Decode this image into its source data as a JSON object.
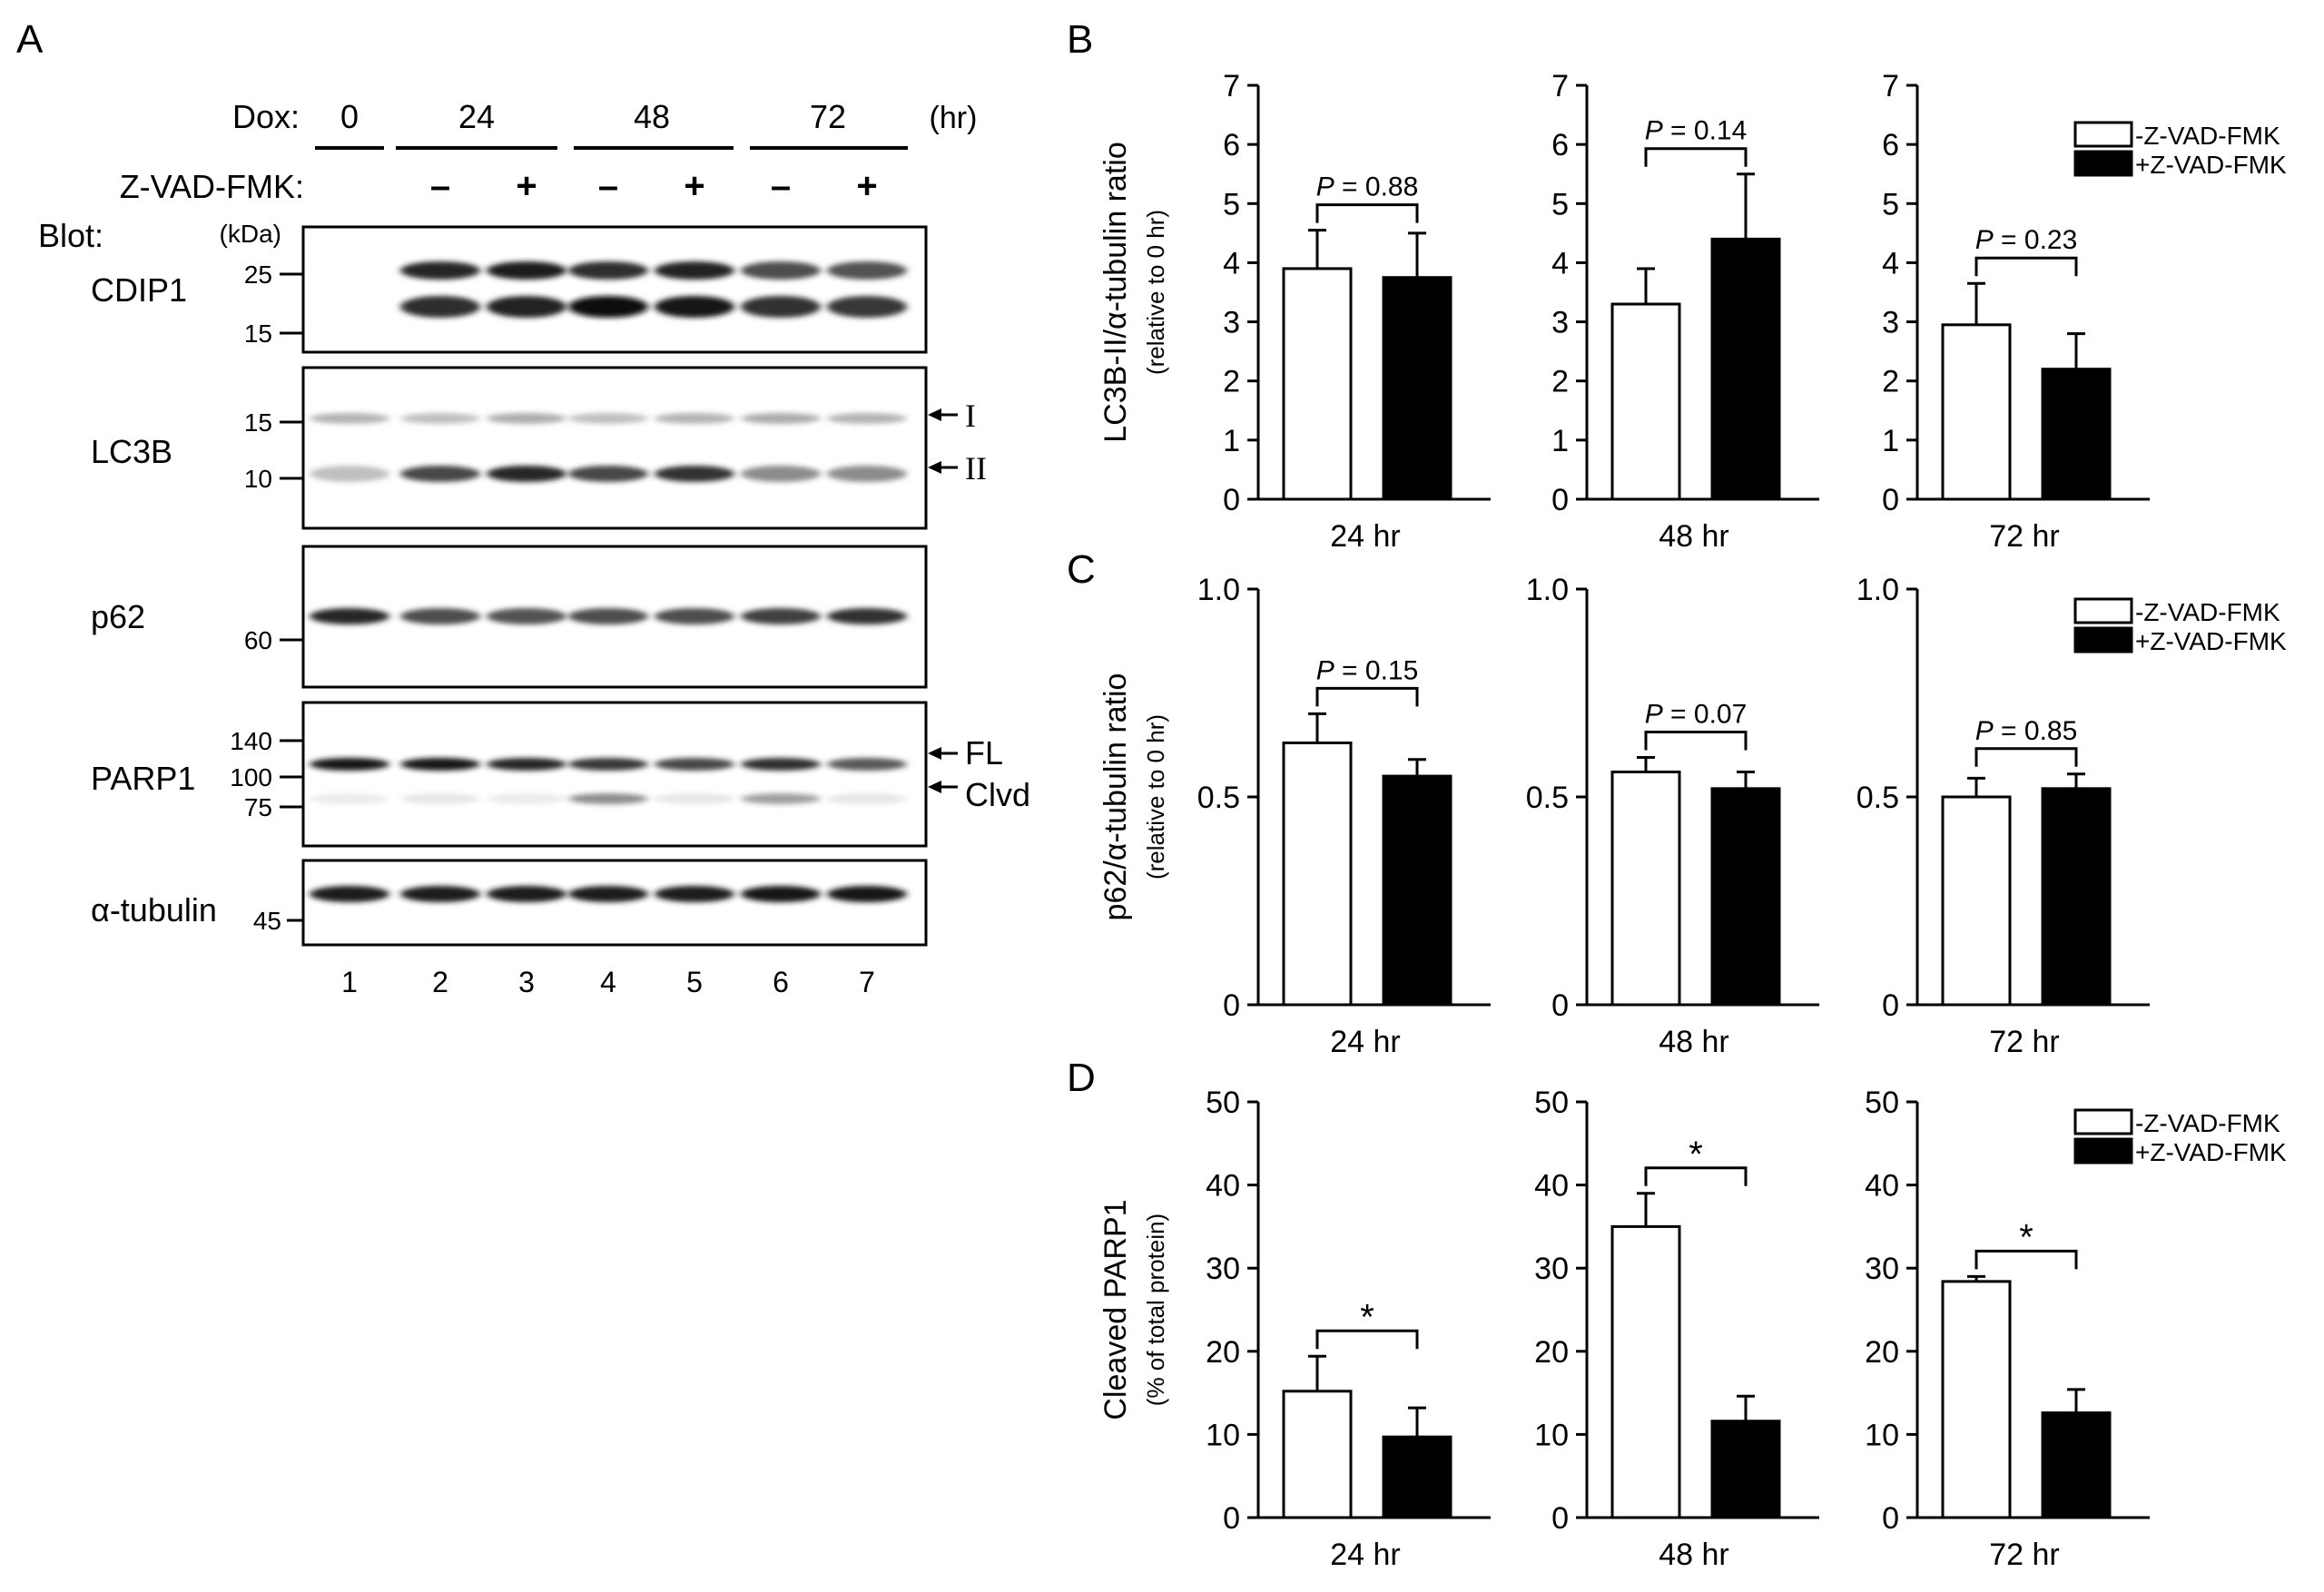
{
  "panel_labels": {
    "a": "A",
    "b": "B",
    "c": "C",
    "d": "D"
  },
  "blot": {
    "dox_label": "Dox:",
    "dox_groups": [
      "0",
      "24",
      "48",
      "72"
    ],
    "dox_unit": "(hr)",
    "zvad_label": "Z-VAD-FMK:",
    "zvad_signs": [
      "–",
      "+",
      "–",
      "+",
      "–",
      "+"
    ],
    "blot_label": "Blot:",
    "kda_label": "(kDa)",
    "lanes": [
      "1",
      "2",
      "3",
      "4",
      "5",
      "6",
      "7"
    ],
    "panels": [
      {
        "name": "CDIP1",
        "markers": [
          "25",
          "15"
        ],
        "arrows": []
      },
      {
        "name": "LC3B",
        "markers": [
          "15",
          "10"
        ],
        "arrows": [
          "I",
          "II"
        ]
      },
      {
        "name": "p62",
        "markers": [
          "60"
        ],
        "arrows": []
      },
      {
        "name": "PARP1",
        "markers": [
          "140",
          "100",
          "75"
        ],
        "arrows": [
          "FL",
          "Clvd"
        ]
      },
      {
        "name": "α-tubulin",
        "markers": [
          "45"
        ],
        "arrows": []
      }
    ],
    "band_intensity": {
      "cdip1_upper": [
        0,
        0.85,
        0.88,
        0.82,
        0.86,
        0.7,
        0.68
      ],
      "cdip1_lower": [
        0,
        0.82,
        0.86,
        0.95,
        0.9,
        0.8,
        0.78
      ],
      "lc3b_I": [
        0.3,
        0.25,
        0.32,
        0.25,
        0.3,
        0.33,
        0.3
      ],
      "lc3b_II": [
        0.25,
        0.72,
        0.85,
        0.72,
        0.8,
        0.45,
        0.45
      ],
      "p62": [
        0.85,
        0.7,
        0.68,
        0.7,
        0.7,
        0.75,
        0.8
      ],
      "parp1_fl": [
        0.92,
        0.92,
        0.85,
        0.78,
        0.72,
        0.82,
        0.65
      ],
      "parp1_clvd": [
        0.08,
        0.1,
        0.08,
        0.45,
        0.1,
        0.38,
        0.1
      ],
      "tubulin": [
        0.88,
        0.88,
        0.88,
        0.88,
        0.88,
        0.9,
        0.92
      ]
    }
  },
  "legend": {
    "minus": "-Z-VAD-FMK",
    "plus": "+Z-VAD-FMK"
  },
  "chart_data": [
    {
      "type": "bar",
      "panel": "B",
      "ylabel": "LC3B-II/α-tubulin ratio",
      "ylabel_sub": "(relative to 0 hr)",
      "ylim": [
        0,
        7
      ],
      "yticks": [
        "0",
        "1",
        "2",
        "3",
        "4",
        "5",
        "6",
        "7"
      ],
      "categories": [
        "24 hr",
        "48 hr",
        "72 hr"
      ],
      "series": [
        {
          "name": "-Z-VAD-FMK",
          "values": [
            3.9,
            3.3,
            2.95
          ],
          "errors": [
            0.65,
            0.6,
            0.7
          ]
        },
        {
          "name": "+Z-VAD-FMK",
          "values": [
            3.75,
            4.4,
            2.2
          ],
          "errors": [
            0.75,
            1.1,
            0.6
          ]
        }
      ],
      "annotations": [
        "P = 0.88",
        "P = 0.14",
        "P = 0.23"
      ]
    },
    {
      "type": "bar",
      "panel": "C",
      "ylabel": "p62/α-tubulin ratio",
      "ylabel_sub": "(relative to 0 hr)",
      "ylim": [
        0,
        1.0
      ],
      "yticks": [
        "0",
        "0.5",
        "1.0"
      ],
      "categories": [
        "24 hr",
        "48 hr",
        "72 hr"
      ],
      "series": [
        {
          "name": "-Z-VAD-FMK",
          "values": [
            0.63,
            0.56,
            0.5
          ],
          "errors": [
            0.07,
            0.035,
            0.045
          ]
        },
        {
          "name": "+Z-VAD-FMK",
          "values": [
            0.55,
            0.52,
            0.52
          ],
          "errors": [
            0.04,
            0.04,
            0.035
          ]
        }
      ],
      "annotations": [
        "P = 0.15",
        "P = 0.07",
        "P = 0.85"
      ]
    },
    {
      "type": "bar",
      "panel": "D",
      "ylabel": "Cleaved PARP1",
      "ylabel_sub": "(% of total protein)",
      "ylim": [
        0,
        50
      ],
      "yticks": [
        "0",
        "10",
        "20",
        "30",
        "40",
        "50"
      ],
      "categories": [
        "24 hr",
        "48 hr",
        "72 hr"
      ],
      "series": [
        {
          "name": "-Z-VAD-FMK",
          "values": [
            15.2,
            35.0,
            28.4
          ],
          "errors": [
            4.2,
            4.0,
            0.6
          ]
        },
        {
          "name": "+Z-VAD-FMK",
          "values": [
            9.7,
            11.6,
            12.6
          ],
          "errors": [
            3.5,
            3.0,
            2.8
          ]
        }
      ],
      "annotations": [
        "*",
        "*",
        "*"
      ]
    }
  ]
}
